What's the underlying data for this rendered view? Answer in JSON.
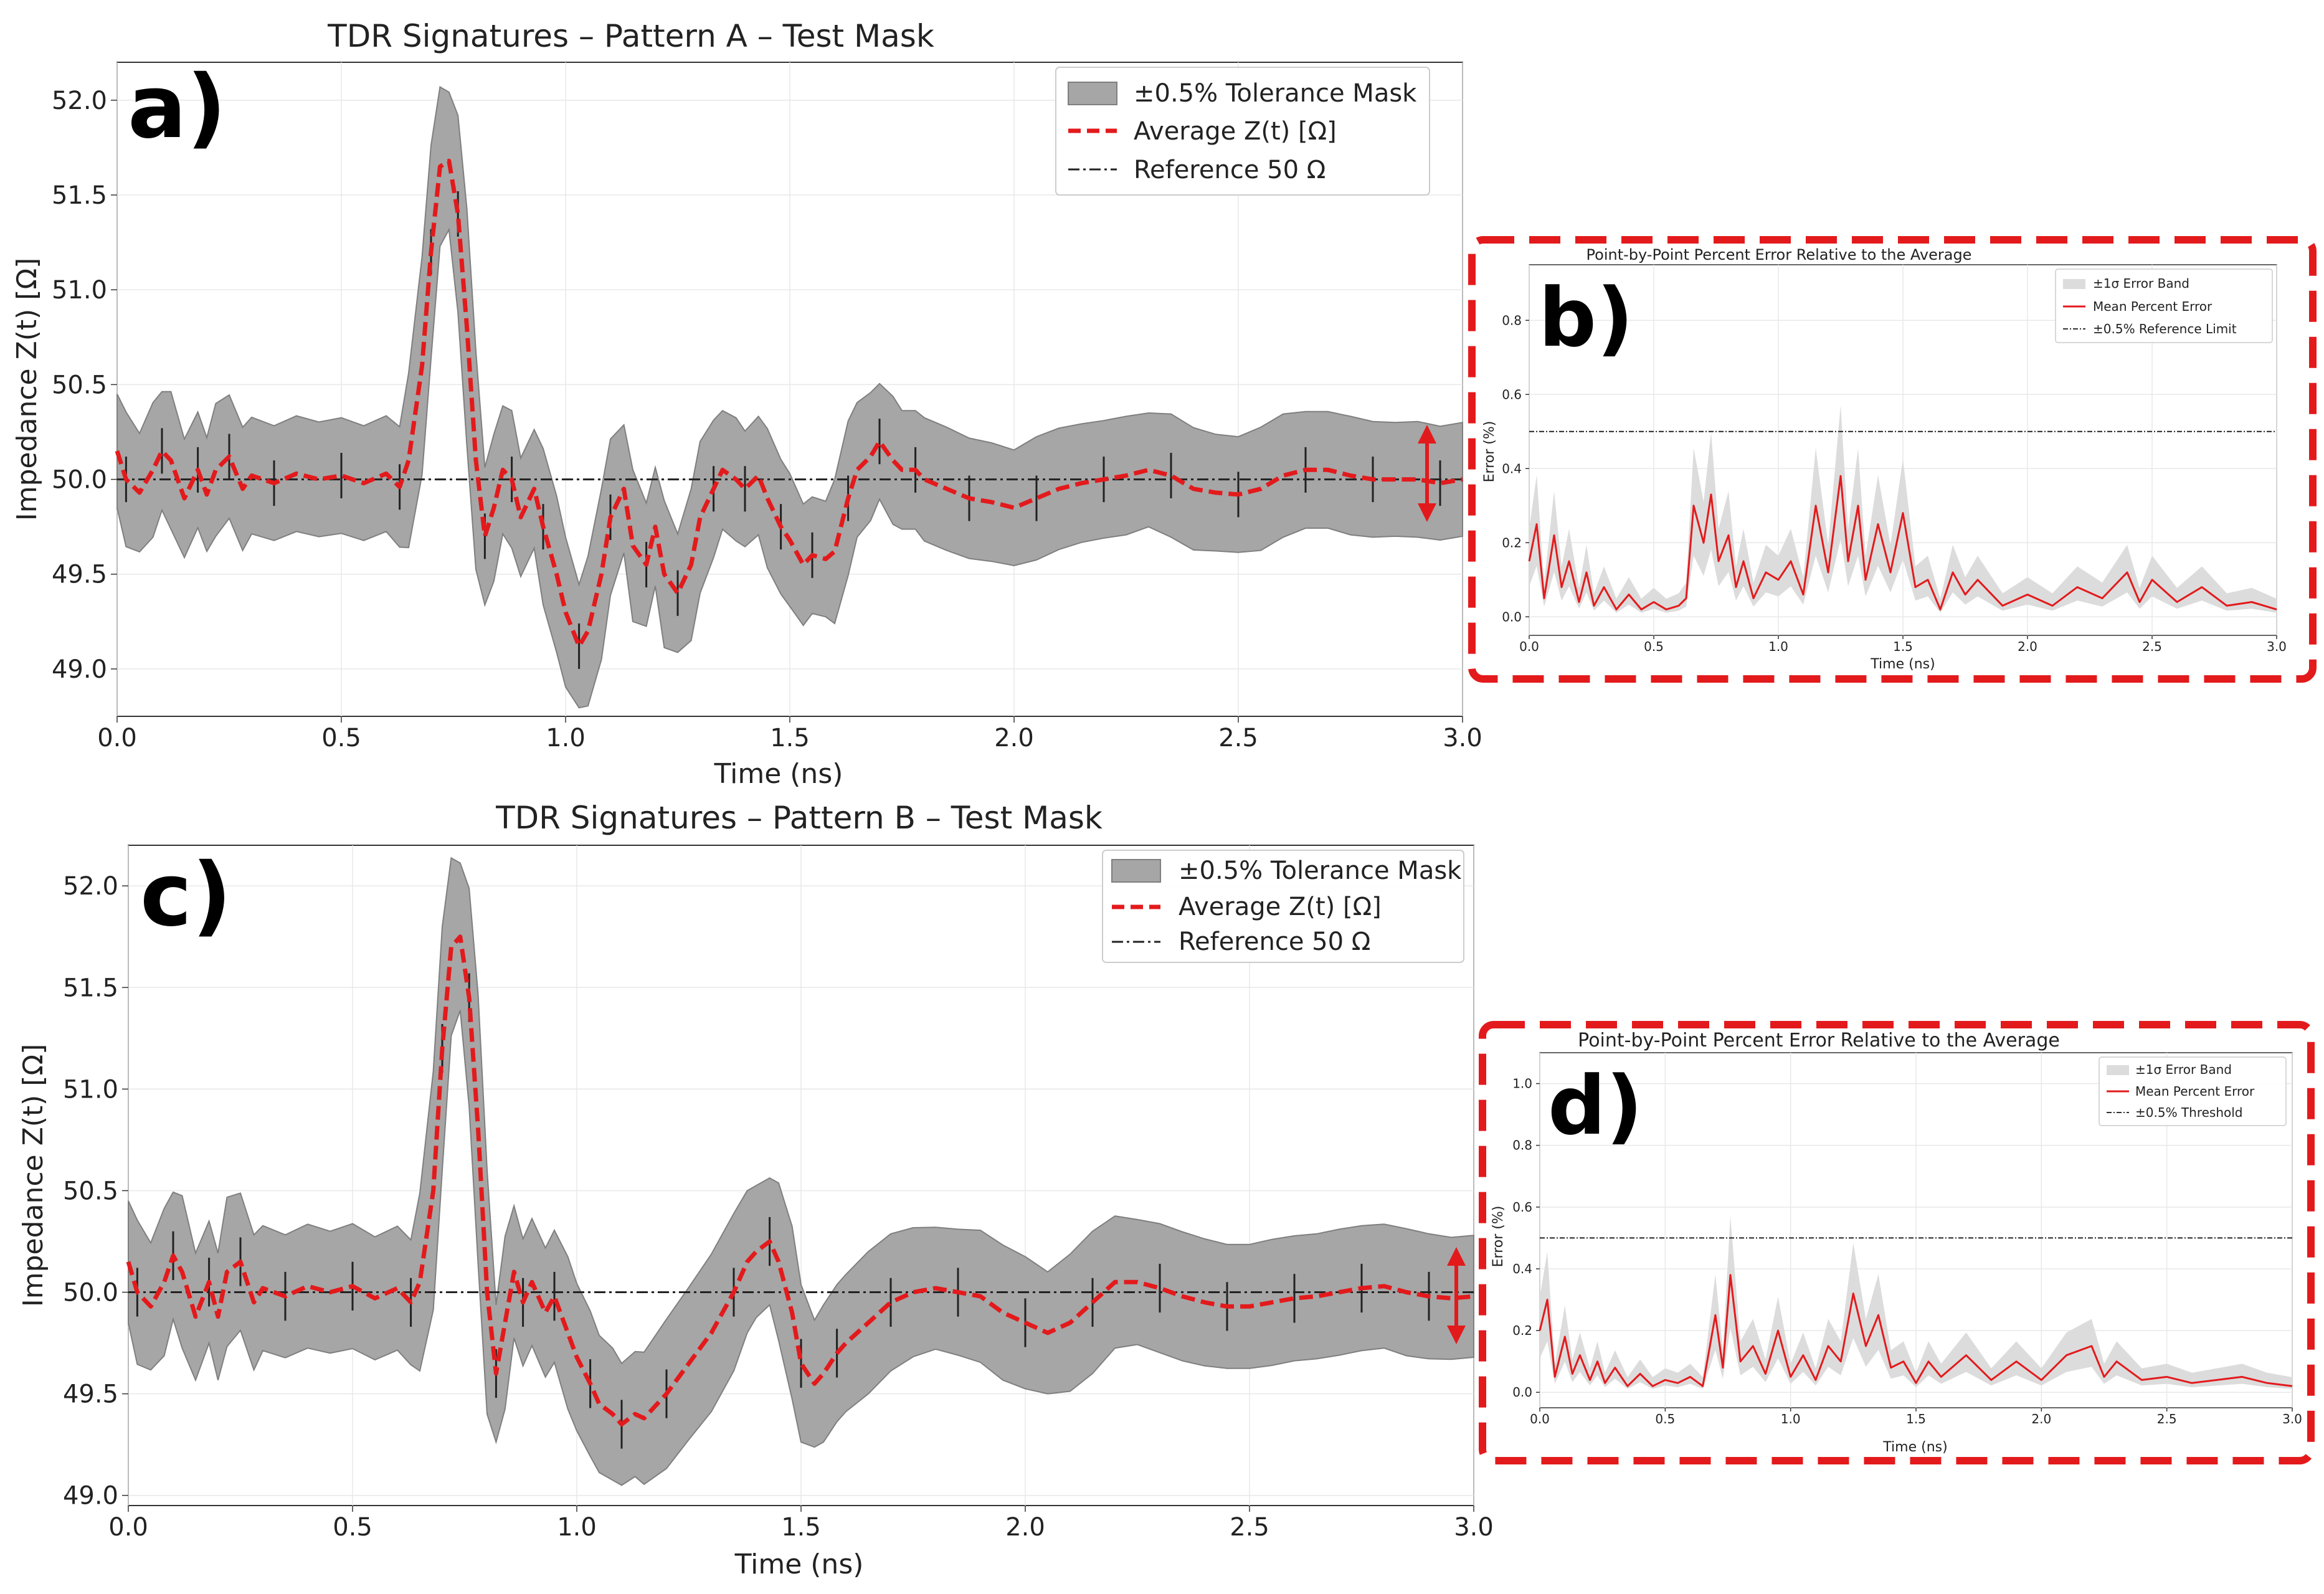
{
  "colors": {
    "mask_fill": "#a6a6a6",
    "mask_edge": "#7f7f7f",
    "avg_line": "#e31a1c",
    "ref_line": "#222222",
    "error_band": "#dcdcdc",
    "mean_error": "#e31a1c",
    "highlight_box": "#e31a1c",
    "grid": "#e8e8e8"
  },
  "panels": {
    "a": {
      "letter": "a)"
    },
    "b": {
      "letter": "b)"
    },
    "c": {
      "letter": "c)"
    },
    "d": {
      "letter": "d)"
    }
  },
  "chart_data": [
    {
      "id": "a",
      "type": "line",
      "title": "TDR Signatures – Pattern A – Test Mask",
      "xlabel": "Time (ns)",
      "ylabel": "Impedance Z(t) [Ω]",
      "xlim": [
        0,
        3.0
      ],
      "ylim": [
        48.75,
        52.2
      ],
      "xticks": [
        "0.0",
        "0.5",
        "1.0",
        "1.5",
        "2.0",
        "2.5",
        "3.0"
      ],
      "yticks": [
        "49.0",
        "49.5",
        "50.0",
        "50.5",
        "51.0",
        "51.5",
        "52.0"
      ],
      "grid": true,
      "legend_position": "top-right",
      "legend": [
        "±0.5% Tolerance Mask",
        "Average Z(t) [Ω]",
        "Reference 50 Ω"
      ],
      "reference": 50.0,
      "series": [
        {
          "name": "Average Z(t) [Ω]",
          "x": [
            0,
            0.02,
            0.05,
            0.08,
            0.1,
            0.12,
            0.15,
            0.18,
            0.2,
            0.22,
            0.25,
            0.28,
            0.3,
            0.35,
            0.4,
            0.45,
            0.5,
            0.55,
            0.6,
            0.63,
            0.65,
            0.68,
            0.7,
            0.72,
            0.74,
            0.76,
            0.78,
            0.8,
            0.82,
            0.84,
            0.86,
            0.88,
            0.9,
            0.93,
            0.95,
            0.98,
            1.0,
            1.03,
            1.05,
            1.08,
            1.1,
            1.13,
            1.15,
            1.18,
            1.2,
            1.22,
            1.25,
            1.28,
            1.3,
            1.33,
            1.35,
            1.38,
            1.4,
            1.43,
            1.45,
            1.48,
            1.5,
            1.53,
            1.55,
            1.58,
            1.6,
            1.63,
            1.65,
            1.68,
            1.7,
            1.73,
            1.75,
            1.78,
            1.8,
            1.85,
            1.9,
            1.95,
            2.0,
            2.05,
            2.1,
            2.15,
            2.2,
            2.25,
            2.3,
            2.35,
            2.4,
            2.45,
            2.5,
            2.55,
            2.6,
            2.65,
            2.7,
            2.75,
            2.8,
            2.85,
            2.9,
            2.95,
            3.0
          ],
          "values": [
            50.15,
            50.0,
            49.93,
            50.05,
            50.15,
            50.1,
            49.9,
            50.05,
            49.92,
            50.05,
            50.12,
            49.95,
            50.02,
            49.98,
            50.03,
            50.0,
            50.02,
            49.98,
            50.03,
            49.96,
            50.1,
            50.6,
            51.2,
            51.65,
            51.68,
            51.4,
            50.8,
            50.1,
            49.7,
            49.85,
            50.05,
            50.0,
            49.8,
            49.95,
            49.75,
            49.5,
            49.3,
            49.12,
            49.2,
            49.5,
            49.8,
            49.95,
            49.65,
            49.55,
            49.75,
            49.5,
            49.4,
            49.55,
            49.8,
            49.95,
            50.05,
            50.0,
            49.95,
            50.02,
            49.9,
            49.75,
            49.68,
            49.55,
            49.6,
            49.58,
            49.62,
            49.9,
            50.05,
            50.12,
            50.2,
            50.1,
            50.05,
            50.05,
            50.0,
            49.95,
            49.9,
            49.88,
            49.85,
            49.9,
            49.95,
            49.98,
            50.0,
            50.02,
            50.05,
            50.02,
            49.95,
            49.93,
            49.92,
            49.95,
            50.02,
            50.05,
            50.05,
            50.02,
            50.0,
            50.0,
            50.0,
            49.98,
            50.0
          ]
        }
      ],
      "band_halfwidth": 0.3
    },
    {
      "id": "b",
      "type": "line",
      "title": "Point-by-Point Percent Error Relative to the Average",
      "xlabel": "Time (ns)",
      "ylabel": "Error (%)",
      "xlim": [
        0,
        3.0
      ],
      "ylim": [
        -0.05,
        0.95
      ],
      "xticks": [
        "0.0",
        "0.5",
        "1.0",
        "1.5",
        "2.0",
        "2.5",
        "3.0"
      ],
      "yticks": [
        "0.0",
        "0.2",
        "0.4",
        "0.6",
        "0.8"
      ],
      "grid": true,
      "legend_position": "top-right",
      "legend": [
        "±1σ Error Band",
        "Mean Percent Error",
        "±0.5% Reference Limit"
      ],
      "reference": 0.5,
      "series": [
        {
          "name": "Mean Percent Error",
          "x": [
            0,
            0.03,
            0.06,
            0.1,
            0.13,
            0.16,
            0.2,
            0.23,
            0.26,
            0.3,
            0.35,
            0.4,
            0.45,
            0.5,
            0.55,
            0.6,
            0.63,
            0.66,
            0.7,
            0.73,
            0.76,
            0.8,
            0.83,
            0.86,
            0.9,
            0.95,
            1.0,
            1.05,
            1.1,
            1.15,
            1.2,
            1.25,
            1.28,
            1.32,
            1.35,
            1.4,
            1.45,
            1.5,
            1.55,
            1.6,
            1.65,
            1.7,
            1.75,
            1.8,
            1.9,
            2.0,
            2.1,
            2.2,
            2.3,
            2.4,
            2.45,
            2.5,
            2.6,
            2.7,
            2.8,
            2.9,
            3.0
          ],
          "values": [
            0.15,
            0.25,
            0.05,
            0.22,
            0.08,
            0.15,
            0.04,
            0.12,
            0.03,
            0.08,
            0.02,
            0.06,
            0.02,
            0.04,
            0.02,
            0.03,
            0.05,
            0.3,
            0.2,
            0.33,
            0.15,
            0.22,
            0.08,
            0.15,
            0.05,
            0.12,
            0.1,
            0.15,
            0.06,
            0.3,
            0.12,
            0.38,
            0.15,
            0.3,
            0.1,
            0.25,
            0.12,
            0.28,
            0.08,
            0.1,
            0.02,
            0.12,
            0.06,
            0.1,
            0.03,
            0.06,
            0.03,
            0.08,
            0.05,
            0.12,
            0.04,
            0.1,
            0.04,
            0.08,
            0.03,
            0.04,
            0.02
          ]
        }
      ]
    },
    {
      "id": "c",
      "type": "line",
      "title": "TDR Signatures – Pattern B – Test Mask",
      "xlabel": "Time (ns)",
      "ylabel": "Impedance Z(t) [Ω]",
      "xlim": [
        0,
        3.0
      ],
      "ylim": [
        48.95,
        52.2
      ],
      "xticks": [
        "0.0",
        "0.5",
        "1.0",
        "1.5",
        "2.0",
        "2.5",
        "3.0"
      ],
      "yticks": [
        "49.0",
        "49.5",
        "50.0",
        "50.5",
        "51.0",
        "51.5",
        "52.0"
      ],
      "grid": true,
      "legend_position": "top-right",
      "legend": [
        "±0.5% Tolerance Mask",
        "Average Z(t) [Ω]",
        "Reference 50 Ω"
      ],
      "reference": 50.0,
      "series": [
        {
          "name": "Average Z(t) [Ω]",
          "x": [
            0,
            0.02,
            0.05,
            0.08,
            0.1,
            0.12,
            0.15,
            0.18,
            0.2,
            0.22,
            0.25,
            0.28,
            0.3,
            0.35,
            0.4,
            0.45,
            0.5,
            0.55,
            0.6,
            0.63,
            0.65,
            0.68,
            0.7,
            0.72,
            0.74,
            0.76,
            0.78,
            0.8,
            0.82,
            0.84,
            0.86,
            0.88,
            0.9,
            0.93,
            0.95,
            0.98,
            1.0,
            1.03,
            1.05,
            1.08,
            1.1,
            1.13,
            1.15,
            1.2,
            1.25,
            1.3,
            1.35,
            1.38,
            1.4,
            1.43,
            1.45,
            1.48,
            1.5,
            1.53,
            1.55,
            1.58,
            1.6,
            1.65,
            1.7,
            1.75,
            1.8,
            1.85,
            1.9,
            1.95,
            2.0,
            2.05,
            2.1,
            2.15,
            2.2,
            2.25,
            2.3,
            2.35,
            2.4,
            2.45,
            2.5,
            2.55,
            2.6,
            2.65,
            2.7,
            2.75,
            2.8,
            2.85,
            2.9,
            2.95,
            3.0
          ],
          "values": [
            50.15,
            50.0,
            49.93,
            50.05,
            50.18,
            50.1,
            49.88,
            50.05,
            49.88,
            50.1,
            50.15,
            49.95,
            50.02,
            49.98,
            50.03,
            50.0,
            50.03,
            49.97,
            50.02,
            49.95,
            50.05,
            50.5,
            51.2,
            51.7,
            51.75,
            51.45,
            50.8,
            50.0,
            49.6,
            49.85,
            50.1,
            49.95,
            50.05,
            49.9,
            49.98,
            49.8,
            49.68,
            49.55,
            49.45,
            49.4,
            49.35,
            49.4,
            49.38,
            49.5,
            49.65,
            49.8,
            50.0,
            50.15,
            50.2,
            50.25,
            50.15,
            49.9,
            49.65,
            49.55,
            49.6,
            49.7,
            49.75,
            49.85,
            49.95,
            50.0,
            50.02,
            50.0,
            49.98,
            49.9,
            49.85,
            49.8,
            49.85,
            49.95,
            50.05,
            50.05,
            50.02,
            49.98,
            49.95,
            49.93,
            49.93,
            49.95,
            49.97,
            49.98,
            50.0,
            50.02,
            50.03,
            50.0,
            49.98,
            49.97,
            49.98
          ]
        }
      ],
      "band_halfwidth": 0.3
    },
    {
      "id": "d",
      "type": "line",
      "title": "Point-by-Point Percent Error Relative to the Average",
      "xlabel": "Time (ns)",
      "ylabel": "Error (%)",
      "xlim": [
        0,
        3.0
      ],
      "ylim": [
        -0.05,
        1.1
      ],
      "xticks": [
        "0.0",
        "0.5",
        "1.0",
        "1.5",
        "2.0",
        "2.5",
        "3.0"
      ],
      "yticks": [
        "0.0",
        "0.2",
        "0.4",
        "0.6",
        "0.8",
        "1.0"
      ],
      "grid": true,
      "legend_position": "top-right",
      "legend": [
        "±1σ Error Band",
        "Mean Percent Error",
        "±0.5% Threshold"
      ],
      "reference": 0.5,
      "series": [
        {
          "name": "Mean Percent Error",
          "x": [
            0,
            0.03,
            0.06,
            0.1,
            0.13,
            0.16,
            0.2,
            0.23,
            0.26,
            0.3,
            0.35,
            0.4,
            0.45,
            0.5,
            0.55,
            0.6,
            0.65,
            0.7,
            0.73,
            0.76,
            0.8,
            0.85,
            0.9,
            0.95,
            1.0,
            1.05,
            1.1,
            1.15,
            1.2,
            1.25,
            1.3,
            1.35,
            1.4,
            1.45,
            1.5,
            1.55,
            1.6,
            1.7,
            1.8,
            1.9,
            2.0,
            2.1,
            2.2,
            2.25,
            2.3,
            2.4,
            2.5,
            2.6,
            2.7,
            2.8,
            2.9,
            3.0
          ],
          "values": [
            0.2,
            0.3,
            0.05,
            0.18,
            0.06,
            0.12,
            0.04,
            0.1,
            0.03,
            0.08,
            0.02,
            0.06,
            0.02,
            0.04,
            0.03,
            0.05,
            0.02,
            0.25,
            0.08,
            0.38,
            0.1,
            0.15,
            0.06,
            0.2,
            0.05,
            0.12,
            0.04,
            0.15,
            0.1,
            0.32,
            0.15,
            0.25,
            0.08,
            0.1,
            0.03,
            0.1,
            0.05,
            0.12,
            0.04,
            0.1,
            0.04,
            0.12,
            0.15,
            0.05,
            0.1,
            0.04,
            0.05,
            0.03,
            0.04,
            0.05,
            0.03,
            0.02
          ]
        }
      ]
    }
  ]
}
